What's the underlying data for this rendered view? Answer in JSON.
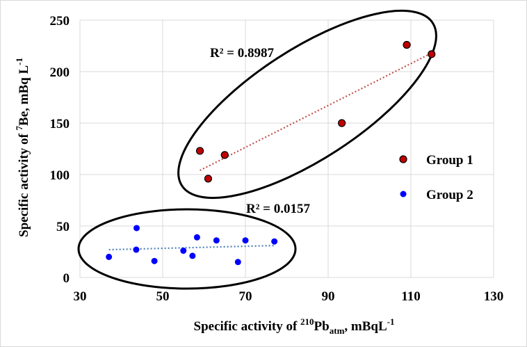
{
  "chart_data": {
    "type": "scatter",
    "xlabel_parts": [
      "Specific activity of ",
      "210",
      "Pb",
      "atm",
      ", mBqL",
      "-1"
    ],
    "ylabel_parts": [
      "Specific activity of ",
      "7",
      "Be, mBq L",
      "-1"
    ],
    "xlim": [
      30,
      130
    ],
    "ylim": [
      0,
      250
    ],
    "xticks": [
      30,
      50,
      70,
      90,
      110,
      130
    ],
    "yticks": [
      0,
      50,
      100,
      150,
      200,
      250
    ],
    "grid": "vertical-and-horizontal",
    "legend_position": "right",
    "series": [
      {
        "name": "Group 1",
        "color": "#c00000",
        "marker": "circle-outlined",
        "trendline_color": "#c0504d",
        "points": [
          {
            "x": 59,
            "y": 123
          },
          {
            "x": 61,
            "y": 96
          },
          {
            "x": 65,
            "y": 119
          },
          {
            "x": 93.3,
            "y": 150
          },
          {
            "x": 109,
            "y": 226
          },
          {
            "x": 115,
            "y": 217
          }
        ],
        "trendline": {
          "x": [
            59,
            115
          ],
          "y": [
            104,
            218
          ]
        },
        "r2_label": "R² = 0.8987"
      },
      {
        "name": "Group 2",
        "color": "#0000ff",
        "marker": "circle",
        "trendline_color": "#4a7ebb",
        "points": [
          {
            "x": 37,
            "y": 20
          },
          {
            "x": 43.7,
            "y": 48
          },
          {
            "x": 43.6,
            "y": 27
          },
          {
            "x": 48,
            "y": 16
          },
          {
            "x": 55,
            "y": 26
          },
          {
            "x": 57.2,
            "y": 21
          },
          {
            "x": 58.3,
            "y": 39
          },
          {
            "x": 63,
            "y": 36
          },
          {
            "x": 68.2,
            "y": 15
          },
          {
            "x": 70,
            "y": 36
          },
          {
            "x": 77,
            "y": 35
          }
        ],
        "trendline": {
          "x": [
            37,
            77
          ],
          "y": [
            27,
            31
          ]
        },
        "r2_label": "R² = 0.0157"
      }
    ]
  }
}
